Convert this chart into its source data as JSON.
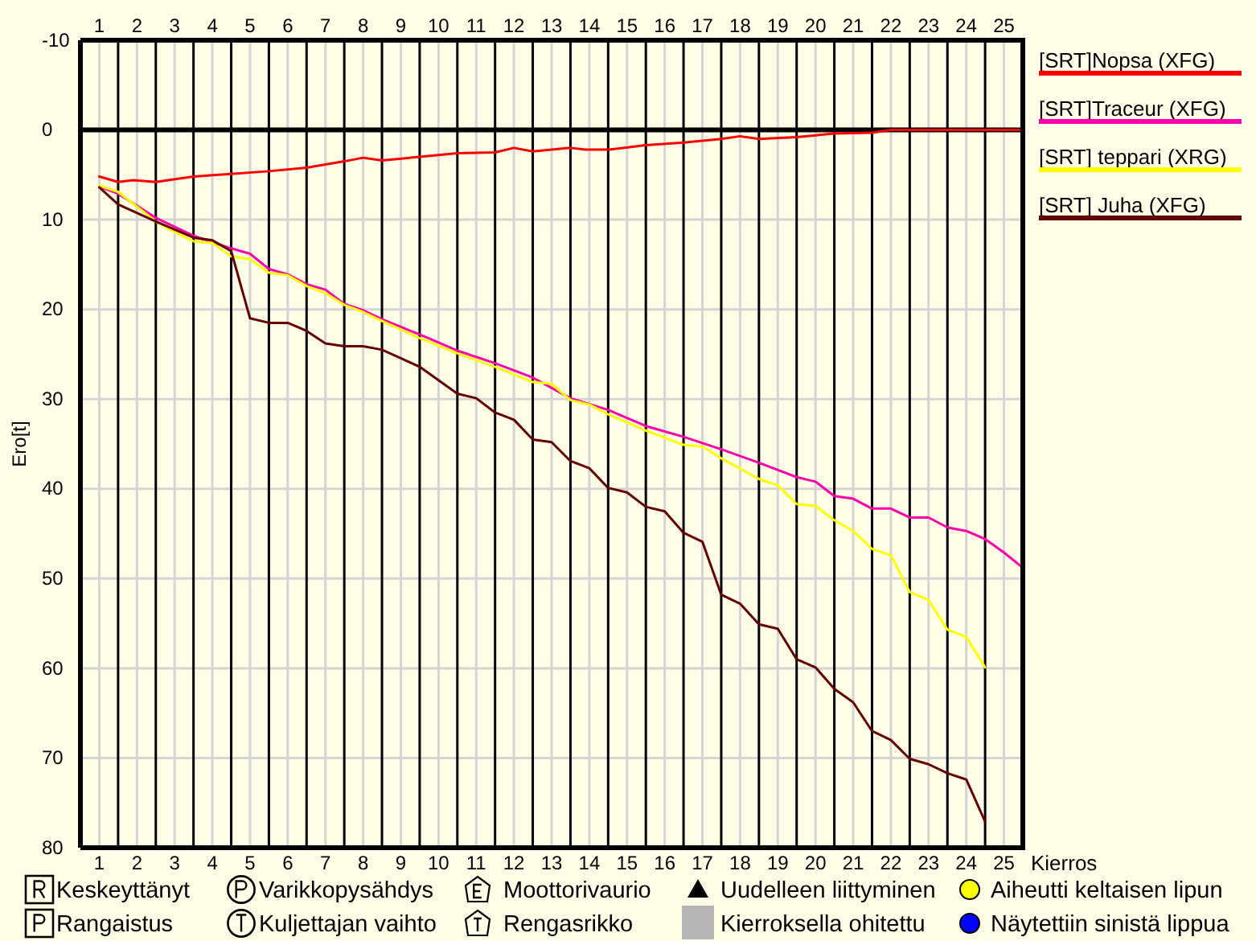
{
  "chart_data": {
    "type": "line",
    "xlabel": "Kierros",
    "ylabel": "Ero[t]",
    "xlim": [
      0.5,
      25.5
    ],
    "xticks": [
      1,
      2,
      3,
      4,
      5,
      6,
      7,
      8,
      9,
      10,
      11,
      12,
      13,
      14,
      15,
      16,
      17,
      18,
      19,
      20,
      21,
      22,
      23,
      24,
      25
    ],
    "x2lim": [
      0.5,
      25.5
    ],
    "x2ticks": [
      1,
      2,
      3,
      4,
      5,
      6,
      7,
      8,
      9,
      10,
      11,
      12,
      13,
      14,
      15,
      16,
      17,
      18,
      19,
      20,
      21,
      22,
      23,
      24,
      25
    ],
    "ylim": [
      80,
      -10
    ],
    "yticks": [
      -10,
      0,
      10,
      20,
      30,
      40,
      50,
      60,
      70,
      80
    ],
    "grid": true,
    "legend": "top right",
    "line_style": "solid",
    "series": [
      {
        "name": "[SRT]Nopsa (XFG)",
        "color": "#ff0000",
        "x": [
          1.0,
          1.5,
          1.9,
          2.5,
          3.5,
          4.5,
          5.5,
          6.5,
          7.5,
          8.0,
          8.5,
          9.5,
          10.5,
          11.5,
          12.0,
          12.5,
          13.5,
          13.9,
          14.5,
          15.5,
          16.5,
          17.5,
          18.0,
          18.5,
          19.5,
          20.5,
          21.5,
          22.0,
          25.5
        ],
        "values": [
          5.2,
          5.8,
          5.6,
          5.8,
          5.2,
          4.9,
          4.6,
          4.2,
          3.5,
          3.1,
          3.4,
          3.0,
          2.6,
          2.5,
          2.0,
          2.4,
          2.0,
          2.2,
          2.2,
          1.7,
          1.4,
          1.0,
          0.7,
          1.0,
          0.8,
          0.4,
          0.3,
          0,
          0
        ]
      },
      {
        "name": "[SRT]Traceur (XFG)",
        "color": "#ff00aa",
        "x": [
          1.0,
          1.5,
          2.5,
          3.5,
          4.5,
          5.0,
          5.5,
          6.0,
          6.5,
          7.0,
          7.5,
          8.0,
          8.5,
          9.5,
          10.5,
          11.5,
          12.5,
          13.5,
          14.5,
          15.5,
          16.5,
          17.5,
          18.5,
          19.5,
          20.0,
          20.5,
          21.0,
          21.5,
          22.0,
          22.5,
          23.0,
          23.5,
          24.0,
          24.5,
          25.0,
          25.5
        ],
        "values": [
          6.3,
          7.1,
          9.8,
          11.8,
          13.2,
          13.8,
          15.5,
          16.1,
          17.2,
          17.8,
          19.4,
          20.1,
          21.1,
          22.8,
          24.6,
          26.0,
          27.6,
          29.9,
          31.2,
          33.0,
          34.2,
          35.6,
          37.1,
          38.7,
          39.2,
          40.8,
          41.1,
          42.2,
          42.2,
          43.2,
          43.2,
          44.3,
          44.7,
          45.6,
          47.1,
          48.8
        ]
      },
      {
        "name": "[SRT] teppari (XRG)",
        "color": "#ffff00",
        "x": [
          1.0,
          1.5,
          2.5,
          3.0,
          3.5,
          4.0,
          4.5,
          5.0,
          5.5,
          6.0,
          6.5,
          7.0,
          7.5,
          8.0,
          8.5,
          9.5,
          10.5,
          11.5,
          12.5,
          13.0,
          13.5,
          14.0,
          14.5,
          15.5,
          16.5,
          17.0,
          17.5,
          18.5,
          19.0,
          19.5,
          20.0,
          20.5,
          21.0,
          21.5,
          22.0,
          22.5,
          23.0,
          23.5,
          24.0,
          24.5
        ],
        "values": [
          6.2,
          6.9,
          10.2,
          11.4,
          12.4,
          12.6,
          14.1,
          14.4,
          15.9,
          16.2,
          17.4,
          18.2,
          19.5,
          20.3,
          21.3,
          23.2,
          24.9,
          26.4,
          28.1,
          28.3,
          30.1,
          30.6,
          31.7,
          33.5,
          35.1,
          35.3,
          36.6,
          38.9,
          39.6,
          41.7,
          41.9,
          43.5,
          44.7,
          46.7,
          47.4,
          51.5,
          52.4,
          55.7,
          56.5,
          59.9
        ]
      },
      {
        "name": "[SRT] Juha (XFG)",
        "color": "#660000",
        "x": [
          1.0,
          1.5,
          2.5,
          3.5,
          4.0,
          4.5,
          5.0,
          5.5,
          6.0,
          6.5,
          7.0,
          7.5,
          8.0,
          8.5,
          9.5,
          10.5,
          11.0,
          11.5,
          12.0,
          12.5,
          13.0,
          13.5,
          14.0,
          14.5,
          15.0,
          15.5,
          16.0,
          16.5,
          17.0,
          17.5,
          18.0,
          18.5,
          19.0,
          19.5,
          20.0,
          20.5,
          21.0,
          21.5,
          22.0,
          22.5,
          23.0,
          23.5,
          24.0,
          24.5
        ],
        "values": [
          6.4,
          8.3,
          10.2,
          12.0,
          12.3,
          13.5,
          21.0,
          21.5,
          21.5,
          22.4,
          23.8,
          24.1,
          24.1,
          24.5,
          26.4,
          29.4,
          29.9,
          31.5,
          32.3,
          34.5,
          34.8,
          36.9,
          37.7,
          39.9,
          40.4,
          42.0,
          42.5,
          44.9,
          45.9,
          51.8,
          52.8,
          55.1,
          55.6,
          59.0,
          59.9,
          62.3,
          63.8,
          67.0,
          68.0,
          70.1,
          70.7,
          71.7,
          72.4,
          77.1
        ]
      }
    ],
    "ref_lines": [
      {
        "axis": "y",
        "value": 0,
        "color": "#000000"
      },
      {
        "axis": "x",
        "value": 1.5,
        "color": "#000000"
      },
      {
        "axis": "x",
        "value": 2.5,
        "color": "#000000"
      },
      {
        "axis": "x",
        "value": 3.5,
        "color": "#000000"
      },
      {
        "axis": "x",
        "value": 4.5,
        "color": "#000000"
      },
      {
        "axis": "x",
        "value": 5.5,
        "color": "#000000"
      },
      {
        "axis": "x",
        "value": 6.5,
        "color": "#000000"
      },
      {
        "axis": "x",
        "value": 7.5,
        "color": "#000000"
      },
      {
        "axis": "x",
        "value": 8.5,
        "color": "#000000"
      },
      {
        "axis": "x",
        "value": 9.5,
        "color": "#000000"
      },
      {
        "axis": "x",
        "value": 10.5,
        "color": "#000000"
      },
      {
        "axis": "x",
        "value": 11.5,
        "color": "#000000"
      },
      {
        "axis": "x",
        "value": 12.5,
        "color": "#000000"
      },
      {
        "axis": "x",
        "value": 13.5,
        "color": "#000000"
      },
      {
        "axis": "x",
        "value": 14.5,
        "color": "#000000"
      },
      {
        "axis": "x",
        "value": 15.5,
        "color": "#000000"
      },
      {
        "axis": "x",
        "value": 16.5,
        "color": "#000000"
      },
      {
        "axis": "x",
        "value": 17.5,
        "color": "#000000"
      },
      {
        "axis": "x",
        "value": 18.5,
        "color": "#000000"
      },
      {
        "axis": "x",
        "value": 19.5,
        "color": "#000000"
      },
      {
        "axis": "x",
        "value": 20.5,
        "color": "#000000"
      },
      {
        "axis": "x",
        "value": 21.5,
        "color": "#000000"
      },
      {
        "axis": "x",
        "value": 22.5,
        "color": "#000000"
      },
      {
        "axis": "x",
        "value": 23.5,
        "color": "#000000"
      },
      {
        "axis": "x",
        "value": 24.5,
        "color": "#000000"
      }
    ],
    "annotations": [
      "Keskeyttänyt",
      "Rangaistus",
      "Varikkopysähdys",
      "Kuljettajan vaihto",
      "Moottorivaurio",
      "Rengasrikko",
      "Uudelleen liittyminen",
      "Kierroksella ohitettu",
      "Aiheutti keltaisen lipun",
      "Näytettiin sinistä lippua"
    ]
  }
}
